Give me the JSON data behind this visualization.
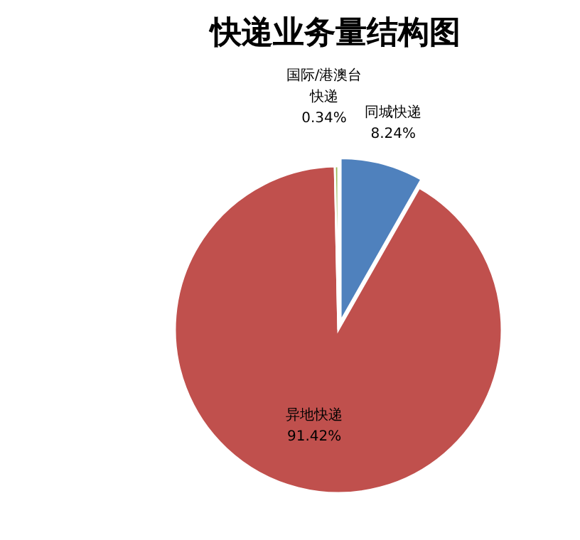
{
  "chart_data": {
    "type": "pie",
    "title": "快递业务量结构图",
    "categories": [
      "同城快递",
      "异地快递",
      "国际/港澳台快递"
    ],
    "values": [
      8.24,
      91.42,
      0.34
    ],
    "colors": [
      "#4f81bd",
      "#c0504d",
      "#9bbb59"
    ],
    "value_labels": [
      "8.24%",
      "91.42%",
      "0.34%"
    ]
  }
}
